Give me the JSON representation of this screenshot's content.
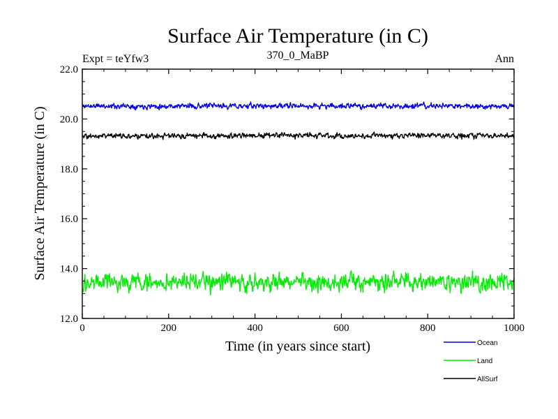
{
  "chart_data": {
    "type": "line",
    "title": "Surface Air Temperature (in C)",
    "subtitle_left": "Expt = teYfw3",
    "subtitle_center": "370_0_MaBP",
    "subtitle_right": "Ann",
    "xlabel": "Time (in years since start)",
    "ylabel": "Surface Air Temperature (in C)",
    "xlim": [
      0,
      1000
    ],
    "ylim": [
      12.0,
      22.0
    ],
    "x_ticks": [
      0,
      200,
      400,
      600,
      800,
      1000
    ],
    "x_tick_labels": [
      "0",
      "200",
      "400",
      "600",
      "800",
      "1000"
    ],
    "y_ticks": [
      12.0,
      14.0,
      16.0,
      18.0,
      20.0,
      22.0
    ],
    "y_tick_labels": [
      "12.0",
      "14.0",
      "16.0",
      "18.0",
      "20.0",
      "22.0"
    ],
    "legend_position": "bottom-right, outside plot",
    "series": [
      {
        "name": "Ocean",
        "color": "#0000ee",
        "mean": 20.52,
        "variability": 0.05,
        "samples": 1000,
        "seed": 11
      },
      {
        "name": "Land",
        "color": "#00ee00",
        "mean": 13.45,
        "variability": 0.16,
        "samples": 1000,
        "seed": 29
      },
      {
        "name": "AllSurf",
        "color": "#000000",
        "mean": 19.33,
        "variability": 0.05,
        "samples": 1000,
        "seed": 47
      }
    ]
  }
}
